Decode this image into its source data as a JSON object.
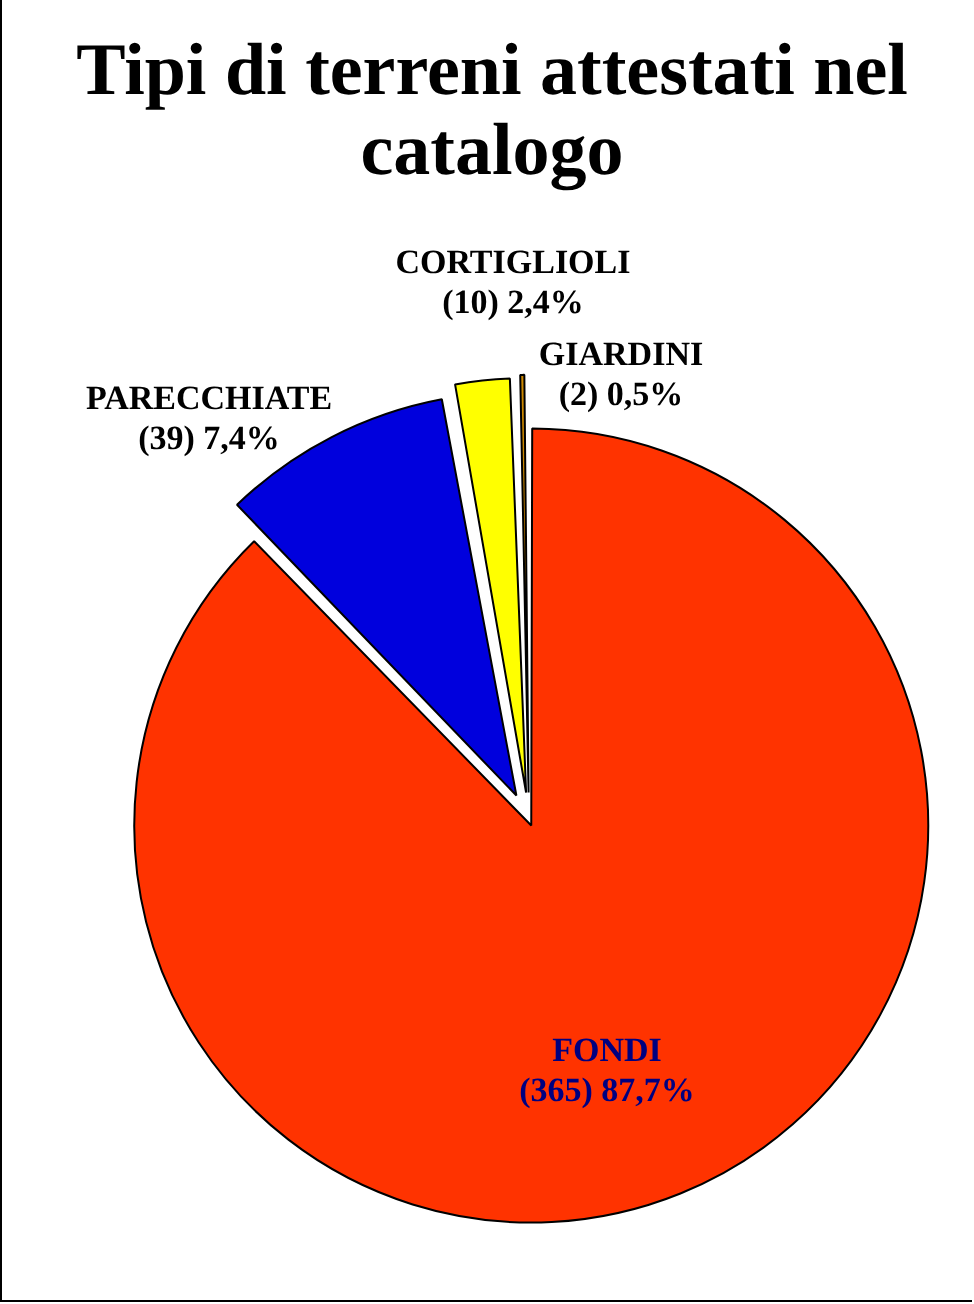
{
  "chart_data": {
    "type": "pie",
    "title": "Tipi di terreni attestati nel catalogo",
    "categories": [
      "FONDI",
      "PARECCHIATE",
      "CORTIGLIOLI",
      "GIARDINI"
    ],
    "values": [
      365,
      39,
      10,
      2
    ],
    "value_labels": [
      "(365) 87,7%",
      "(39) 7,4%",
      "(10) 2,4%",
      "(2) 0,5%"
    ],
    "colors": [
      "#ff3300",
      "#0000dd",
      "#ffff00",
      "#cc8800"
    ],
    "legend": false
  }
}
